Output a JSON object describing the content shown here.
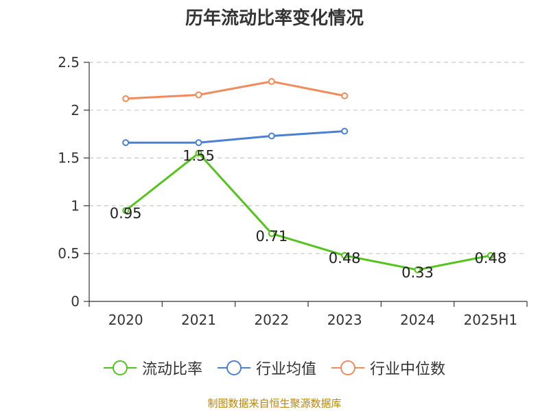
{
  "title": "历年流动比率变化情况",
  "source": "制图数据来自恒生聚源数据库",
  "chart_data": {
    "type": "line",
    "categories": [
      "2020",
      "2021",
      "2022",
      "2023",
      "2024",
      "2025H1"
    ],
    "ylim": [
      0,
      2.5
    ],
    "yticks": [
      "0",
      "0.5",
      "1",
      "1.5",
      "2",
      "2.5"
    ],
    "grid": true,
    "legend_position": "bottom",
    "series": [
      {
        "name": "流动比率",
        "color": "#52c41a",
        "values": [
          0.95,
          1.55,
          0.71,
          0.48,
          0.33,
          0.48
        ],
        "labels": [
          "0.95",
          "1.55",
          "0.71",
          "0.48",
          "0.33",
          "0.48"
        ]
      },
      {
        "name": "行业均值",
        "color": "#4a7fd4",
        "values": [
          1.66,
          1.66,
          1.73,
          1.78,
          null,
          null
        ]
      },
      {
        "name": "行业中位数",
        "color": "#f28a5a",
        "values": [
          2.12,
          2.16,
          2.3,
          2.15,
          null,
          null
        ]
      }
    ]
  }
}
